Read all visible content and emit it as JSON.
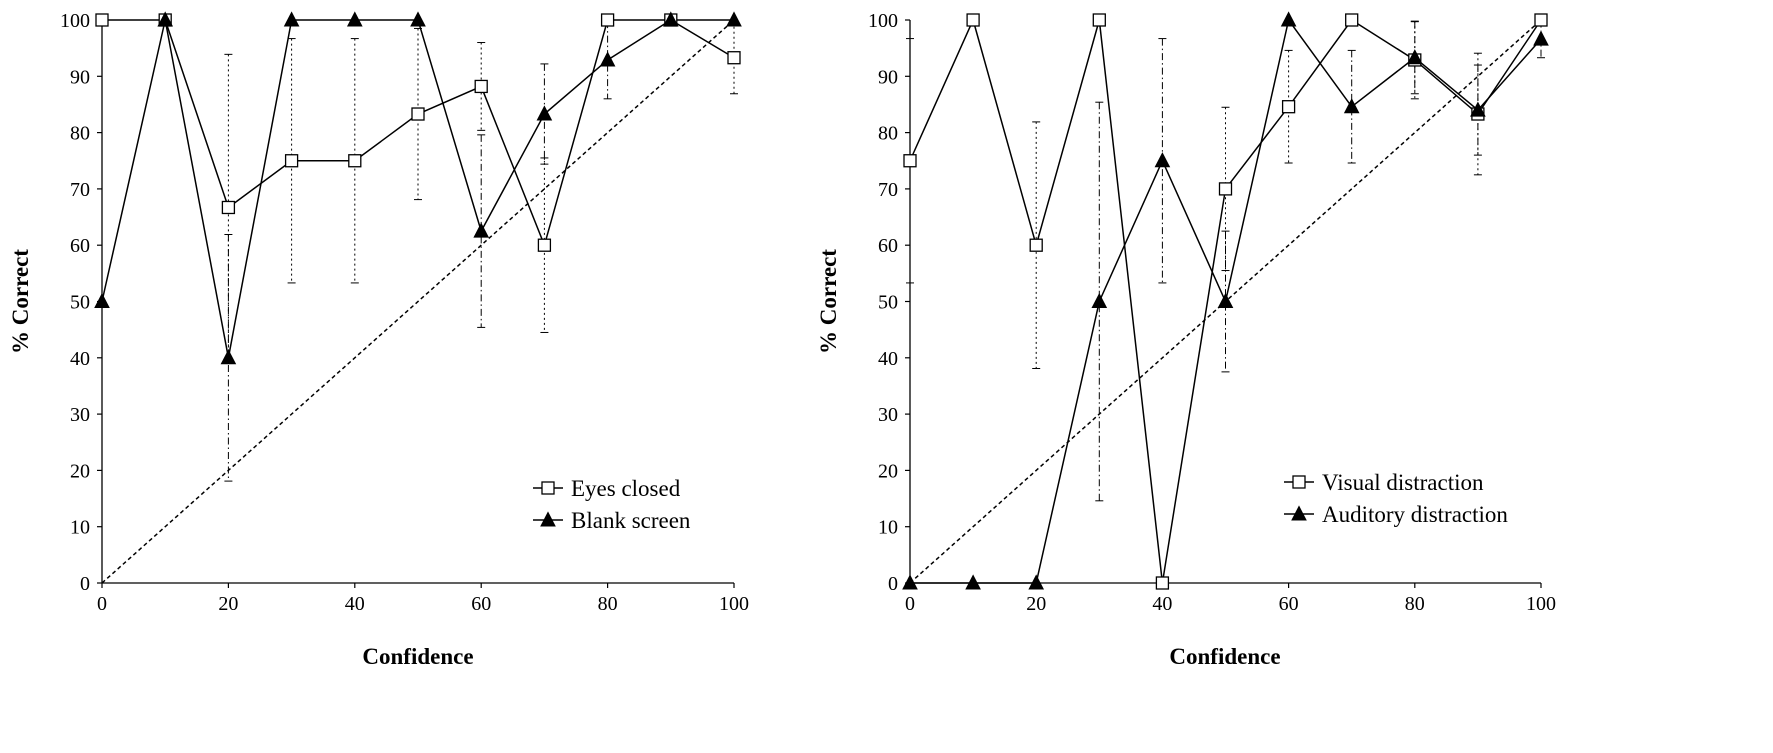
{
  "chart_data": [
    {
      "type": "line",
      "title": "",
      "xlabel": "Confidence",
      "ylabel": "% Correct",
      "xlim": [
        0,
        100
      ],
      "ylim": [
        0,
        100
      ],
      "x_ticks": [
        0,
        20,
        40,
        60,
        80,
        100
      ],
      "y_ticks": [
        0,
        10,
        20,
        30,
        40,
        50,
        60,
        70,
        80,
        90,
        100
      ],
      "grid": false,
      "legend": "bottom-right",
      "x": [
        0,
        10,
        20,
        30,
        40,
        50,
        60,
        70,
        80,
        90,
        100
      ],
      "series": [
        {
          "name": "Eyes closed",
          "marker": "open-square",
          "error_style": "dotted",
          "values": [
            100,
            100,
            66.7,
            75,
            75,
            83.3,
            88.2,
            60,
            100,
            100,
            93.3
          ],
          "errors": [
            null,
            null,
            27.2,
            21.7,
            21.7,
            15.2,
            7.8,
            15.5,
            null,
            null,
            6.4
          ]
        },
        {
          "name": "Blank screen",
          "marker": "filled-triangle",
          "error_style": "dash-dot",
          "values": [
            50,
            100,
            40,
            100,
            100,
            100,
            62.5,
            83.3,
            92.9,
            100,
            100
          ],
          "errors": [
            null,
            null,
            21.9,
            null,
            null,
            null,
            17.1,
            8.9,
            6.9,
            null,
            null
          ]
        }
      ],
      "reference_line": {
        "x": [
          0,
          100
        ],
        "y": [
          0,
          100
        ],
        "style": "dashed"
      }
    },
    {
      "type": "line",
      "title": "",
      "xlabel": "Confidence",
      "ylabel": "% Correct",
      "xlim": [
        0,
        100
      ],
      "ylim": [
        0,
        100
      ],
      "x_ticks": [
        0,
        20,
        40,
        60,
        80,
        100
      ],
      "y_ticks": [
        0,
        10,
        20,
        30,
        40,
        50,
        60,
        70,
        80,
        90,
        100
      ],
      "grid": false,
      "legend": "bottom-right",
      "x": [
        0,
        10,
        20,
        30,
        40,
        50,
        60,
        70,
        80,
        90,
        100
      ],
      "series": [
        {
          "name": "Visual distraction",
          "marker": "open-square",
          "error_style": "dotted",
          "values": [
            75,
            100,
            60,
            100,
            0,
            70,
            84.6,
            100,
            92.9,
            83.3,
            100
          ],
          "errors": [
            21.7,
            null,
            21.9,
            null,
            null,
            14.5,
            10,
            null,
            6.9,
            10.8,
            null
          ]
        },
        {
          "name": "Auditory distraction",
          "marker": "filled-triangle",
          "error_style": "dash-dot",
          "values": [
            0,
            0,
            0,
            50,
            75,
            50,
            100,
            84.6,
            93.3,
            84,
            96.6
          ],
          "errors": [
            null,
            null,
            null,
            35.4,
            21.7,
            12.5,
            null,
            10,
            6.4,
            8,
            3.3
          ]
        }
      ],
      "reference_line": {
        "x": [
          0,
          100
        ],
        "y": [
          0,
          100
        ],
        "style": "dashed"
      }
    }
  ]
}
